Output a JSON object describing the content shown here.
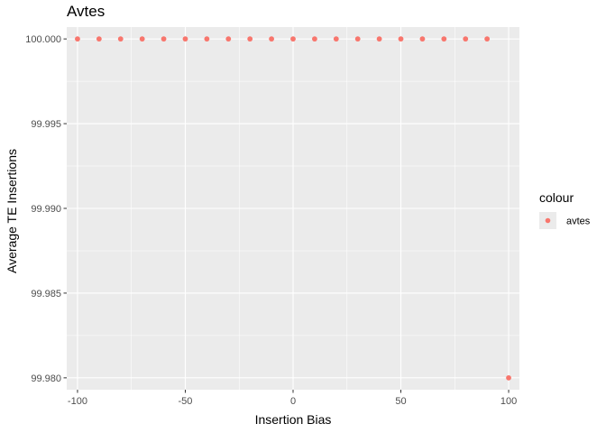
{
  "chart_data": {
    "type": "scatter",
    "title": "Avtes",
    "xlabel": "Insertion Bias",
    "ylabel": "Average TE Insertions",
    "xlim": [
      -105,
      105
    ],
    "ylim": [
      99.9793,
      100.0007
    ],
    "x_ticks": [
      -100,
      -50,
      0,
      50,
      100
    ],
    "x_tick_labels": [
      "-100",
      "-50",
      "0",
      "50",
      "100"
    ],
    "y_ticks": [
      99.98,
      99.985,
      99.99,
      99.995,
      100.0
    ],
    "y_tick_labels": [
      "99.980",
      "99.985",
      "99.990",
      "99.995",
      "100.000"
    ],
    "grid": true,
    "legend": {
      "title": "colour",
      "position": "right",
      "entries": [
        {
          "label": "avtes",
          "color": "#F8766D"
        }
      ]
    },
    "series": [
      {
        "name": "avtes",
        "color": "#F8766D",
        "points": [
          [
            -100,
            100.0
          ],
          [
            -90,
            100.0
          ],
          [
            -80,
            100.0
          ],
          [
            -70,
            100.0
          ],
          [
            -60,
            100.0
          ],
          [
            -50,
            100.0
          ],
          [
            -40,
            100.0
          ],
          [
            -30,
            100.0
          ],
          [
            -20,
            100.0
          ],
          [
            -10,
            100.0
          ],
          [
            0,
            100.0
          ],
          [
            10,
            100.0
          ],
          [
            20,
            100.0
          ],
          [
            30,
            100.0
          ],
          [
            40,
            100.0
          ],
          [
            50,
            100.0
          ],
          [
            60,
            100.0
          ],
          [
            70,
            100.0
          ],
          [
            80,
            100.0
          ],
          [
            90,
            100.0
          ],
          [
            100,
            99.98
          ]
        ]
      }
    ],
    "panel_background": "#EBEBEB",
    "grid_color": "#FFFFFF"
  }
}
